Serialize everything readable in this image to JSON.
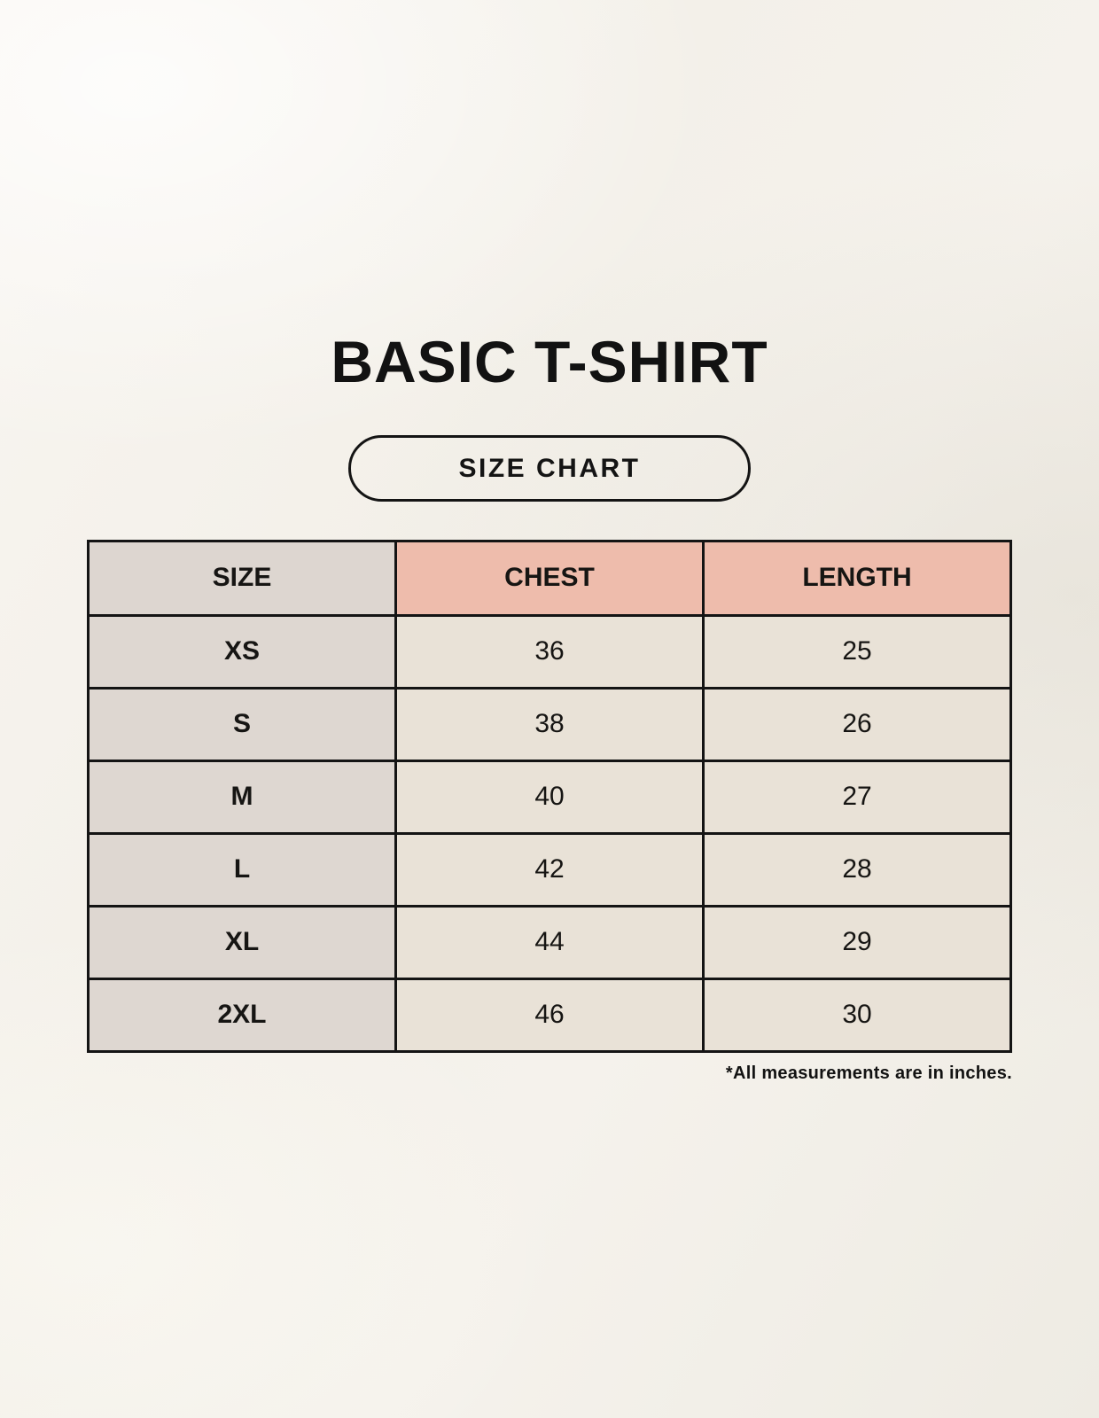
{
  "title": "BASIC T-SHIRT",
  "size_chart_button_label": "SIZE CHART",
  "footnote": "*All measurements are in inches.",
  "colors": {
    "background": "#f3f0e9",
    "size_column_bg": "#ddd6d0",
    "header_accent_bg": "#eebcac",
    "data_cell_bg": "#e9e2d7",
    "border": "#141414",
    "text": "#161513"
  },
  "chart_data": {
    "type": "table",
    "title": "BASIC T-SHIRT",
    "subtitle": "SIZE CHART",
    "columns": [
      "SIZE",
      "CHEST",
      "LENGTH"
    ],
    "rows": [
      [
        "XS",
        36,
        25
      ],
      [
        "S",
        38,
        26
      ],
      [
        "M",
        40,
        27
      ],
      [
        "L",
        42,
        28
      ],
      [
        "XL",
        44,
        29
      ],
      [
        "2XL",
        46,
        30
      ]
    ],
    "units_note": "*All measurements are in inches.",
    "layout": "3 equal columns, header row salmon for CHEST/LENGTH, SIZE column gray, data cells cream, black 3px grid borders"
  }
}
